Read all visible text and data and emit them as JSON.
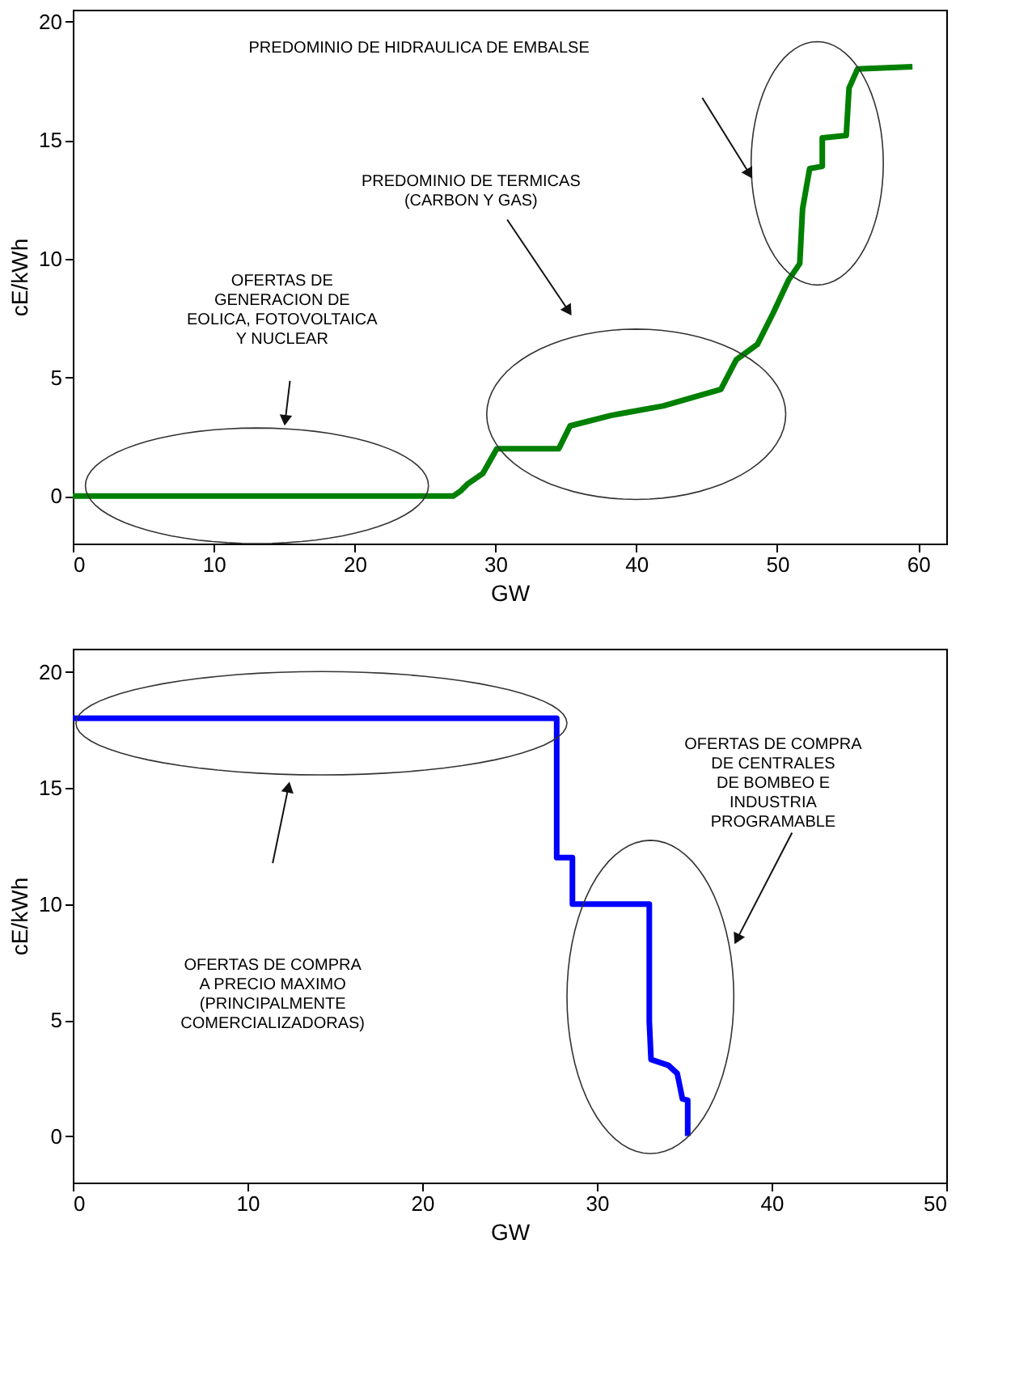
{
  "chart_data": [
    {
      "type": "step",
      "xlabel": "GW",
      "ylabel": "cE/kWh",
      "xlim": [
        0,
        62
      ],
      "ylim": [
        -2,
        20.5
      ],
      "xticks": [
        0,
        10,
        20,
        30,
        40,
        50,
        60
      ],
      "yticks": [
        0,
        5,
        10,
        15,
        20
      ],
      "grid": false,
      "series": [
        {
          "color": "#008000",
          "x": [
            0,
            27.0,
            27.5,
            28.0,
            29.1,
            30.1,
            34.5,
            35.3,
            38.2,
            41.9,
            46.0,
            47.1,
            48.6,
            49.7,
            50.8,
            51.6,
            51.8,
            52.3,
            53.2,
            53.2,
            54.9,
            55.1,
            55.7,
            59.6
          ],
          "values": [
            0,
            0,
            0.2,
            0.5,
            0.95,
            2.0,
            2.0,
            2.96,
            3.4,
            3.8,
            4.5,
            5.75,
            6.4,
            7.7,
            9.1,
            9.8,
            12.1,
            13.8,
            13.9,
            15.1,
            15.2,
            17.2,
            18.0,
            18.1
          ]
        }
      ],
      "annotations": [
        "PREDOMINIO DE HIDRAULICA DE EMBALSE",
        "PREDOMINIO DE TERMICAS\n(CARBON Y GAS)",
        "OFERTAS DE\nGENERACION DE\nEOLICA, FOTOVOLTAICA\nY NUCLEAR"
      ]
    },
    {
      "type": "step",
      "xlabel": "GW",
      "ylabel": "cE/kWh",
      "xlim": [
        0,
        50
      ],
      "ylim": [
        -2,
        21
      ],
      "xticks": [
        0,
        10,
        20,
        30,
        40,
        50
      ],
      "yticks": [
        0,
        5,
        10,
        15,
        20
      ],
      "grid": false,
      "series": [
        {
          "color": "#0000ff",
          "x": [
            0,
            27.7,
            27.7,
            28.6,
            28.6,
            33.0,
            33.0,
            33.1,
            34.1,
            34.6,
            34.9,
            35.2,
            35.2
          ],
          "values": [
            18,
            18,
            12,
            12,
            10,
            10,
            4.95,
            3.3,
            3.05,
            2.7,
            1.6,
            1.55,
            0
          ]
        }
      ],
      "annotations": [
        "OFERTAS DE COMPRA\nA PRECIO MAXIMO\n(PRINCIPALMENTE\nCOMERCIALIZADORAS)",
        "OFERTAS DE COMPRA\nDE CENTRALES\nDE BOMBEO E\nINDUSTRIA\nPROGRAMABLE"
      ]
    }
  ]
}
